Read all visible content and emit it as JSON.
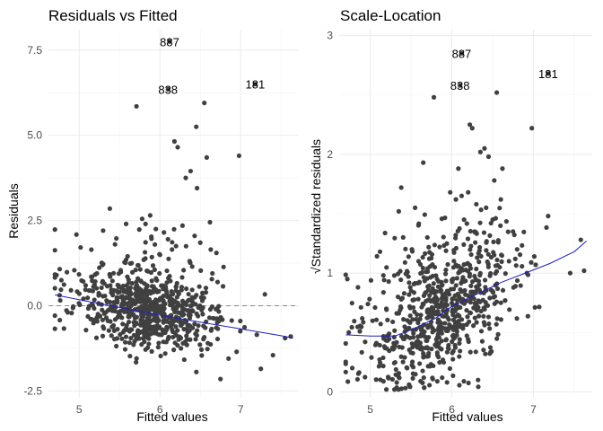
{
  "chart_data": [
    {
      "type": "scatter",
      "title": "Residuals vs Fitted",
      "xlabel": "Fitted values",
      "ylabel": "Residuals",
      "xlim": [
        4.62,
        7.72
      ],
      "ylim": [
        -2.7,
        8.1
      ],
      "xticks": [
        5,
        6,
        7
      ],
      "yticks": [
        -2.5,
        0.0,
        2.5,
        5.0,
        7.5
      ],
      "ytick_labels": [
        "-2.5",
        "0.0",
        "2.5",
        "5.0",
        "7.5"
      ],
      "grid": true,
      "reference_line_y": 0,
      "labeled_points": [
        {
          "label": "887",
          "x": 6.12,
          "y": 7.75
        },
        {
          "label": "838",
          "x": 6.1,
          "y": 6.35
        },
        {
          "label": "181",
          "x": 7.18,
          "y": 6.5
        }
      ],
      "smooth_line": {
        "x": [
          4.7,
          5.0,
          5.5,
          6.0,
          6.5,
          7.0,
          7.5,
          7.65
        ],
        "y": [
          0.32,
          0.18,
          -0.05,
          -0.28,
          -0.48,
          -0.68,
          -0.88,
          -0.95
        ]
      },
      "series": [
        {
          "x": [
            5.71,
            6.55,
            6.45,
            6.98,
            6.18,
            6.22,
            6.58,
            6.38,
            6.32,
            6.46,
            5.38,
            5.78,
            5.88,
            6.62,
            5.95,
            6.05,
            6.28,
            6.43,
            6.5,
            6.63,
            6.7,
            6.1,
            6.2,
            5.6,
            5.65,
            5.15,
            4.72,
            4.78,
            7.25,
            7.2,
            7.4,
            7.55,
            7.62,
            6.75,
            6.85,
            6.95,
            5.7,
            5.8,
            6.65,
            6.4,
            6.15
          ],
          "y": [
            5.85,
            5.95,
            5.25,
            4.4,
            4.82,
            4.65,
            4.35,
            3.95,
            3.75,
            3.45,
            2.85,
            2.55,
            2.65,
            2.45,
            2.25,
            2.15,
            2.35,
            2.05,
            1.85,
            1.65,
            1.55,
            1.95,
            1.75,
            1.45,
            1.25,
            0.85,
            0.9,
            0.75,
            -1.85,
            -0.85,
            -1.45,
            -0.95,
            -0.9,
            -2.15,
            -1.55,
            -1.35,
            1.05,
            1.35,
            0.95,
            1.15,
            1.65
          ]
        }
      ]
    },
    {
      "type": "scatter",
      "title": "Scale-Location",
      "xlabel": "Fitted values",
      "ylabel": "√Standardized residuals",
      "xlim": [
        4.62,
        7.72
      ],
      "ylim": [
        -0.05,
        3.05
      ],
      "xticks": [
        5,
        6,
        7
      ],
      "yticks": [
        0,
        1,
        2,
        3
      ],
      "ytick_labels": [
        "0",
        "1",
        "2",
        "3"
      ],
      "grid": true,
      "labeled_points": [
        {
          "label": "887",
          "x": 6.12,
          "y": 2.85
        },
        {
          "label": "838",
          "x": 6.1,
          "y": 2.58
        },
        {
          "label": "181",
          "x": 7.18,
          "y": 2.68
        }
      ],
      "smooth_line": {
        "x": [
          4.7,
          5.0,
          5.3,
          5.5,
          5.8,
          6.0,
          6.3,
          6.6,
          6.9,
          7.2,
          7.5,
          7.65
        ],
        "y": [
          0.48,
          0.47,
          0.47,
          0.52,
          0.62,
          0.72,
          0.82,
          0.92,
          1.0,
          1.08,
          1.18,
          1.27
        ]
      },
      "series": [
        {
          "x": [
            5.78,
            6.55,
            6.22,
            6.25,
            6.98,
            6.4,
            6.35,
            6.45,
            6.62,
            5.65,
            5.38,
            6.08,
            6.12,
            6.2,
            6.52,
            5.55,
            5.35,
            6.6,
            6.48,
            7.62,
            7.45,
            7.18,
            7.58,
            4.72,
            4.85,
            5.12,
            6.15,
            6.3,
            6.05,
            5.98,
            6.28,
            6.42,
            6.5,
            5.7,
            5.85,
            6.75,
            6.8,
            6.7,
            6.92
          ],
          "y": [
            2.48,
            2.52,
            2.25,
            2.22,
            2.22,
            2.05,
            2.02,
            1.98,
            1.88,
            1.93,
            1.72,
            1.88,
            1.65,
            1.68,
            1.78,
            1.55,
            1.52,
            1.62,
            1.42,
            1.02,
            1.0,
            1.48,
            1.28,
            0.95,
            0.88,
            1.18,
            1.45,
            1.58,
            1.62,
            1.68,
            1.35,
            1.55,
            1.45,
            1.3,
            1.22,
            1.35,
            1.2,
            1.1,
            1.0
          ]
        }
      ]
    }
  ]
}
